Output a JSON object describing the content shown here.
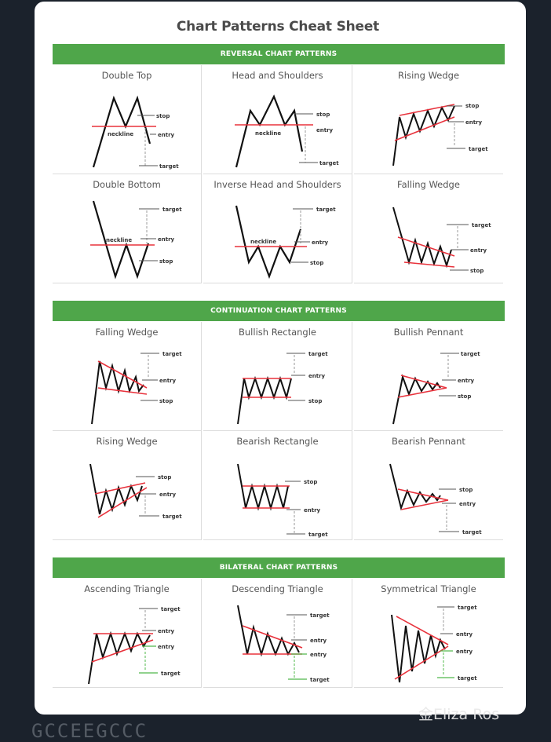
{
  "title": "Chart Patterns Cheat Sheet",
  "sections": [
    {
      "banner": "REVERSAL CHART PATTERNS"
    },
    {
      "banner": "CONTINUATION CHART PATTERNS"
    },
    {
      "banner": "BILATERAL CHART PATTERNS"
    }
  ],
  "patterns": [
    {
      "name": "Double Top",
      "labels": [
        "stop",
        "entry",
        "target",
        "neckline"
      ]
    },
    {
      "name": "Head and Shoulders",
      "labels": [
        "stop",
        "entry",
        "target",
        "neckline"
      ]
    },
    {
      "name": "Rising Wedge",
      "labels": [
        "stop",
        "entry",
        "target"
      ]
    },
    {
      "name": "Double Bottom",
      "labels": [
        "target",
        "entry",
        "stop",
        "neckline"
      ]
    },
    {
      "name": "Inverse Head and Shoulders",
      "labels": [
        "target",
        "entry",
        "stop",
        "neckline"
      ]
    },
    {
      "name": "Falling Wedge",
      "labels": [
        "target",
        "entry",
        "stop"
      ]
    },
    {
      "name": "Falling Wedge",
      "labels": [
        "target",
        "entry",
        "stop"
      ]
    },
    {
      "name": "Bullish Rectangle",
      "labels": [
        "target",
        "entry",
        "stop"
      ]
    },
    {
      "name": "Bullish Pennant",
      "labels": [
        "target",
        "entry",
        "stop"
      ]
    },
    {
      "name": "Rising Wedge",
      "labels": [
        "stop",
        "entry",
        "target"
      ]
    },
    {
      "name": "Bearish Rectangle",
      "labels": [
        "stop",
        "entry",
        "target"
      ]
    },
    {
      "name": "Bearish Pennant",
      "labels": [
        "stop",
        "entry",
        "target"
      ]
    },
    {
      "name": "Ascending Triangle",
      "labels": [
        "target",
        "entry",
        "entry",
        "target"
      ]
    },
    {
      "name": "Descending Triangle",
      "labels": [
        "target",
        "entry",
        "entry",
        "target"
      ]
    },
    {
      "name": "Symmetrical Triangle",
      "labels": [
        "target",
        "entry",
        "entry",
        "target"
      ]
    }
  ],
  "watermark": "金Eliza Ros",
  "footer_text": "GCCEEGCCC",
  "colors": {
    "banner": "#4fa64a",
    "trend_line": "#e8323c",
    "price_line": "#111111",
    "guide_line": "#999999",
    "bilateral_alt": "#4fb84a"
  }
}
